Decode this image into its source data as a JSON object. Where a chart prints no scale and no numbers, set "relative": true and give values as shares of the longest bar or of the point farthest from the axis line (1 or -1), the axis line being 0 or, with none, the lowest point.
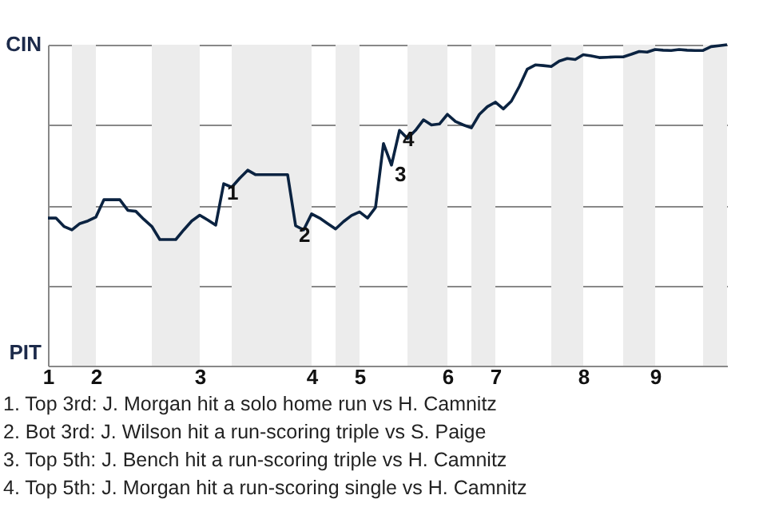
{
  "chart_data": {
    "type": "line",
    "categories": [
      "1",
      null,
      null,
      null,
      null,
      null,
      "2",
      null,
      null,
      null,
      null,
      null,
      null,
      null,
      null,
      null,
      null,
      null,
      null,
      "3",
      null,
      null,
      null,
      null,
      null,
      null,
      null,
      null,
      null,
      null,
      null,
      null,
      null,
      "4",
      null,
      null,
      null,
      null,
      null,
      "5",
      null,
      null,
      null,
      null,
      null,
      null,
      null,
      null,
      null,
      null,
      "6",
      null,
      null,
      null,
      null,
      null,
      "7",
      null,
      null,
      null,
      null,
      null,
      null,
      null,
      null,
      null,
      null,
      "8",
      null,
      null,
      null,
      null,
      null,
      null,
      null,
      null,
      "9",
      null,
      null,
      null,
      null,
      null,
      null,
      null,
      null,
      null
    ],
    "relative": true,
    "series": [
      {
        "color": "#0b2341",
        "values": [
          0.46,
          0.46,
          0.434,
          0.423,
          0.443,
          0.451,
          0.463,
          0.517,
          0.517,
          0.517,
          0.484,
          0.481,
          0.456,
          0.434,
          0.393,
          0.393,
          0.393,
          0.423,
          0.451,
          0.469,
          0.454,
          0.438,
          0.567,
          0.556,
          0.584,
          0.609,
          0.595,
          0.595,
          0.595,
          0.595,
          0.595,
          0.436,
          0.423,
          0.473,
          0.46,
          0.443,
          0.426,
          0.449,
          0.468,
          0.479,
          0.46,
          0.493,
          0.692,
          0.625,
          0.733,
          0.708,
          0.733,
          0.766,
          0.75,
          0.753,
          0.783,
          0.761,
          0.75,
          0.741,
          0.783,
          0.807,
          0.821,
          0.8,
          0.824,
          0.87,
          0.924,
          0.937,
          0.935,
          0.932,
          0.949,
          0.957,
          0.954,
          0.969,
          0.965,
          0.96,
          0.961,
          0.962,
          0.962,
          0.97,
          0.979,
          0.977,
          0.985,
          0.983,
          0.982,
          0.985,
          0.983,
          0.982,
          0.982,
          0.994,
          0.997,
          1
        ]
      }
    ],
    "grid": "y",
    "line_style": "solid",
    "annotations": [
      "CIN",
      "PIT",
      {
        "text": "1",
        "y": 0.567
      },
      {
        "text": "2",
        "y": 0.436
      },
      {
        "text": "3",
        "y": 0.625
      },
      {
        "text": "4",
        "y": 0.733
      },
      "1. Top 3rd: J. Morgan hit a solo home run vs H. Camnitz",
      "2. Bot 3rd: J. Wilson hit a run-scoring triple vs S. Paige",
      "3. Top 5th: J. Bench hit a run-scoring triple vs H. Camnitz",
      "4. Top 5th: J. Morgan hit a run-scoring single vs H. Camnitz"
    ]
  }
}
